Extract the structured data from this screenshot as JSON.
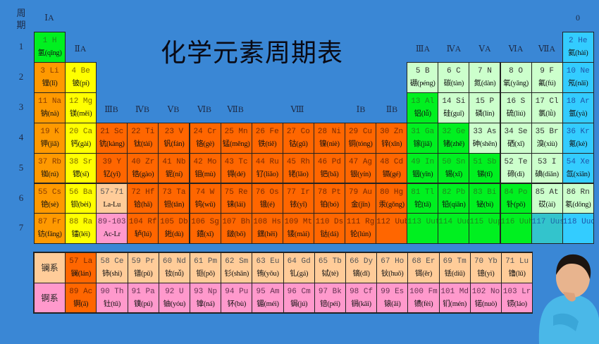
{
  "title": "化学元素周期表",
  "period_header": "周\n期",
  "group_labels": {
    "IA": "ⅠA",
    "IIA": "ⅡA",
    "IIIA": "ⅢA",
    "IVA": "ⅣA",
    "VA": "ⅤA",
    "VIA": "ⅥA",
    "VIIA": "ⅦA",
    "zero": "0",
    "IIIB": "ⅢB",
    "IVB": "ⅣB",
    "VB": "ⅤB",
    "VIB": "ⅥB",
    "VIIB": "ⅦB",
    "VIII": "Ⅷ",
    "IB": "ⅠB",
    "IIB": "ⅡB"
  },
  "category_colors": {
    "a": "#ff9900",
    "e": "#ffff00",
    "t": "#ff6600",
    "g": "#00f020",
    "l": "#ccffcc",
    "n": "#33ccff",
    "q": "#33c4cc",
    "la": "#ffcc99",
    "ac": "#ff99cc"
  },
  "periods": [
    {
      "label": "1",
      "cells": [
        {
          "top": "1 H",
          "bot": "氢(qīng)",
          "c": "g"
        },
        null,
        null,
        null,
        null,
        null,
        null,
        null,
        null,
        null,
        null,
        null,
        null,
        null,
        null,
        null,
        null,
        {
          "top": "2 He",
          "bot": "氦(hài)",
          "c": "n"
        }
      ]
    },
    {
      "label": "2",
      "cells": [
        {
          "top": "3 Li",
          "bot": "锂(lǐ)",
          "c": "a"
        },
        {
          "top": "4 Be",
          "bot": "铍(pí)",
          "c": "e"
        },
        null,
        null,
        null,
        null,
        null,
        null,
        null,
        null,
        null,
        null,
        {
          "top": "5 B",
          "bot": "硼(péng)",
          "c": "l"
        },
        {
          "top": "6 C",
          "bot": "碳(tàn)",
          "c": "l"
        },
        {
          "top": "7 N",
          "bot": "氮(dàn)",
          "c": "l"
        },
        {
          "top": "8 O",
          "bot": "氧(yǎng)",
          "c": "l"
        },
        {
          "top": "9 F",
          "bot": "氟(fú)",
          "c": "l"
        },
        {
          "top": "10 Ne",
          "bot": "氖(nǎi)",
          "c": "n"
        }
      ]
    },
    {
      "label": "3",
      "cells": [
        {
          "top": "11 Na",
          "bot": "钠(nà)",
          "c": "a"
        },
        {
          "top": "12 Mg",
          "bot": "镁(měi)",
          "c": "e"
        },
        null,
        null,
        null,
        null,
        null,
        null,
        null,
        null,
        null,
        null,
        {
          "top": "13 Al",
          "bot": "铝(lǚ)",
          "c": "g"
        },
        {
          "top": "14 Si",
          "bot": "硅(guī)",
          "c": "l"
        },
        {
          "top": "15 P",
          "bot": "磷(lín)",
          "c": "l"
        },
        {
          "top": "16 S",
          "bot": "硫(liú)",
          "c": "l"
        },
        {
          "top": "17 Cl",
          "bot": "氯(lǜ)",
          "c": "l"
        },
        {
          "top": "18 Ar",
          "bot": "氩(yà)",
          "c": "n"
        }
      ]
    },
    {
      "label": "4",
      "cells": [
        {
          "top": "19 K",
          "bot": "钾(jiǎ)",
          "c": "a"
        },
        {
          "top": "20 Ca",
          "bot": "钙(gài)",
          "c": "e"
        },
        {
          "top": "21 Sc",
          "bot": "钪(kàng)",
          "c": "t"
        },
        {
          "top": "22 Ti",
          "bot": "钛(tài)",
          "c": "t"
        },
        {
          "top": "23 V",
          "bot": "钒(fán)",
          "c": "t"
        },
        {
          "top": "24 Cr",
          "bot": "铬(gè)",
          "c": "t"
        },
        {
          "top": "25 Mn",
          "bot": "锰(měng)",
          "c": "t"
        },
        {
          "top": "26 Fe",
          "bot": "铁(tiě)",
          "c": "t"
        },
        {
          "top": "27 Co",
          "bot": "钴(gǔ)",
          "c": "t"
        },
        {
          "top": "28 Ni",
          "bot": "镍(niè)",
          "c": "t"
        },
        {
          "top": "29 Cu",
          "bot": "铜(tóng)",
          "c": "t"
        },
        {
          "top": "30 Zn",
          "bot": "锌(xīn)",
          "c": "t"
        },
        {
          "top": "31 Ga",
          "bot": "镓(jiā)",
          "c": "g"
        },
        {
          "top": "32 Ge",
          "bot": "锗(zhě)",
          "c": "g"
        },
        {
          "top": "33 As",
          "bot": "砷(shēn)",
          "c": "l"
        },
        {
          "top": "34 Se",
          "bot": "硒(xī)",
          "c": "l"
        },
        {
          "top": "35 Br",
          "bot": "溴(xiù)",
          "c": "l"
        },
        {
          "top": "36 Kr",
          "bot": "氪(kè)",
          "c": "n"
        }
      ]
    },
    {
      "label": "5",
      "cells": [
        {
          "top": "37 Rb",
          "bot": "铷(rú)",
          "c": "a"
        },
        {
          "top": "38 Sr",
          "bot": "锶(sī)",
          "c": "e"
        },
        {
          "top": "39 Y",
          "bot": "钇(yǐ)",
          "c": "t"
        },
        {
          "top": "40 Zr",
          "bot": "锆(gào)",
          "c": "t"
        },
        {
          "top": "41 Nb",
          "bot": "铌(ní)",
          "c": "t"
        },
        {
          "top": "42 Mo",
          "bot": "钼(mù)",
          "c": "t"
        },
        {
          "top": "43 Tc",
          "bot": "锝(dé)",
          "c": "t"
        },
        {
          "top": "44 Ru",
          "bot": "钌(liǎo)",
          "c": "t"
        },
        {
          "top": "45 Rh",
          "bot": "铑(lǎo)",
          "c": "t"
        },
        {
          "top": "46 Pd",
          "bot": "钯(bǎ)",
          "c": "t"
        },
        {
          "top": "47 Ag",
          "bot": "银(yín)",
          "c": "t"
        },
        {
          "top": "48 Cd",
          "bot": "镉(gé)",
          "c": "t"
        },
        {
          "top": "49 In",
          "bot": "铟(yīn)",
          "c": "g"
        },
        {
          "top": "50 Sn",
          "bot": "锡(xī)",
          "c": "g"
        },
        {
          "top": "51 Sb",
          "bot": "锑(tī)",
          "c": "g"
        },
        {
          "top": "52 Te",
          "bot": "碲(dì)",
          "c": "l"
        },
        {
          "top": "53 I",
          "bot": "碘(diǎn)",
          "c": "l"
        },
        {
          "top": "54 Xe",
          "bot": "氙(xiān)",
          "c": "n"
        }
      ]
    },
    {
      "label": "6",
      "cells": [
        {
          "top": "55 Cs",
          "bot": "铯(sè)",
          "c": "a"
        },
        {
          "top": "56 Ba",
          "bot": "钡(bèi)",
          "c": "e"
        },
        {
          "top": "57-71",
          "bot": "La-Lu",
          "c": "la"
        },
        {
          "top": "72 Hf",
          "bot": "铪(hā)",
          "c": "t"
        },
        {
          "top": "73 Ta",
          "bot": "钽(tǎn)",
          "c": "t"
        },
        {
          "top": "74 W",
          "bot": "钨(wū)",
          "c": "t"
        },
        {
          "top": "75 Re",
          "bot": "铼(lái)",
          "c": "t"
        },
        {
          "top": "76 Os",
          "bot": "锇(é)",
          "c": "t"
        },
        {
          "top": "77 Ir",
          "bot": "铱(yī)",
          "c": "t"
        },
        {
          "top": "78 Pt",
          "bot": "铂(bó)",
          "c": "t"
        },
        {
          "top": "79 Au",
          "bot": "金(jīn)",
          "c": "t"
        },
        {
          "top": "80 Hg",
          "bot": "汞(gǒng)",
          "c": "t"
        },
        {
          "top": "81 Tl",
          "bot": "铊(tā)",
          "c": "g"
        },
        {
          "top": "82 Pb",
          "bot": "铅(qiān)",
          "c": "g"
        },
        {
          "top": "83 Bi",
          "bot": "铋(bì)",
          "c": "g"
        },
        {
          "top": "84 Po",
          "bot": "钋(pō)",
          "c": "g"
        },
        {
          "top": "85 At",
          "bot": "砹(ài)",
          "c": "l"
        },
        {
          "top": "86 Rn",
          "bot": "氡(dōng)",
          "c": "l"
        }
      ]
    },
    {
      "label": "7",
      "cells": [
        {
          "top": "87 Fr",
          "bot": "钫(fāng)",
          "c": "a"
        },
        {
          "top": "88 Ra",
          "bot": "镭(léi)",
          "c": "e"
        },
        {
          "top": "89-103",
          "bot": "Ac-Lr",
          "c": "ac"
        },
        {
          "top": "104 Rf",
          "bot": "轳(lú)",
          "c": "t"
        },
        {
          "top": "105 Db",
          "bot": "𨧀(dù)",
          "c": "t"
        },
        {
          "top": "106 Sg",
          "bot": "𨭎(xǐ)",
          "c": "t"
        },
        {
          "top": "107 Bh",
          "bot": "𨨏(bō)",
          "c": "t"
        },
        {
          "top": "108 Hs",
          "bot": "𨭆(hēi)",
          "c": "t"
        },
        {
          "top": "109 Mt",
          "bot": "鿏(mài)",
          "c": "t"
        },
        {
          "top": "110 Ds",
          "bot": "𫟼(dá)",
          "c": "t"
        },
        {
          "top": "111 Rg",
          "bot": "𬬭(lún)",
          "c": "t"
        },
        {
          "top": "112 Uub",
          "bot": "",
          "c": "t"
        },
        {
          "top": "113 Uut",
          "bot": "",
          "c": "g"
        },
        {
          "top": "114 Uuq",
          "bot": "",
          "c": "g"
        },
        {
          "top": "115 Uup",
          "bot": "",
          "c": "g"
        },
        {
          "top": "116 Uuh",
          "bot": "",
          "c": "g"
        },
        {
          "top": "117 Uus",
          "bot": "",
          "c": "q"
        },
        {
          "top": "118 Uuo",
          "bot": "",
          "c": "n"
        }
      ]
    }
  ],
  "series": [
    {
      "label": "镧系",
      "c": "la",
      "cells": [
        {
          "top": "57 La",
          "bot": "镧(lán)",
          "c": "t"
        },
        {
          "top": "58 Ce",
          "bot": "铈(shì)"
        },
        {
          "top": "59 Pr",
          "bot": "镨(pǔ)"
        },
        {
          "top": "60 Nd",
          "bot": "钕(nǚ)"
        },
        {
          "top": "61 Pm",
          "bot": "钷(pǒ)"
        },
        {
          "top": "62 Sm",
          "bot": "钐(shān)"
        },
        {
          "top": "63 Eu",
          "bot": "铕(yǒu)"
        },
        {
          "top": "64 Gd",
          "bot": "钆(gá)"
        },
        {
          "top": "65 Tb",
          "bot": "铽(tè)"
        },
        {
          "top": "66 Dy",
          "bot": "镝(dī)"
        },
        {
          "top": "67 Ho",
          "bot": "钬(huǒ)"
        },
        {
          "top": "68 Er",
          "bot": "铒(ěr)"
        },
        {
          "top": "69 Tm",
          "bot": "铥(diū)"
        },
        {
          "top": "70 Yb",
          "bot": "镱(yì)"
        },
        {
          "top": "71 Lu",
          "bot": "镥(lǔ)"
        }
      ]
    },
    {
      "label": "锕系",
      "c": "ac",
      "cells": [
        {
          "top": "89 Ac",
          "bot": "锕(ā)",
          "c": "t"
        },
        {
          "top": "90 Th",
          "bot": "钍(tǔ)"
        },
        {
          "top": "91 Pa",
          "bot": "镤(pú)"
        },
        {
          "top": "92 U",
          "bot": "铀(yóu)"
        },
        {
          "top": "93 Np",
          "bot": "镎(ná)"
        },
        {
          "top": "94 Pu",
          "bot": "钚(bù)"
        },
        {
          "top": "95 Am",
          "bot": "镅(méi)"
        },
        {
          "top": "96 Cm",
          "bot": "锔(jú)"
        },
        {
          "top": "97 Bk",
          "bot": "锫(péi)"
        },
        {
          "top": "98 Cf",
          "bot": "锎(kāi)"
        },
        {
          "top": "99 Es",
          "bot": "锿(āi)"
        },
        {
          "top": "100 Fm",
          "bot": "镄(fèi)"
        },
        {
          "top": "101 Md",
          "bot": "钔(mén)"
        },
        {
          "top": "102 No",
          "bot": "锘(nuò)"
        },
        {
          "top": "103 Lr",
          "bot": "铹(láo)"
        }
      ]
    }
  ]
}
